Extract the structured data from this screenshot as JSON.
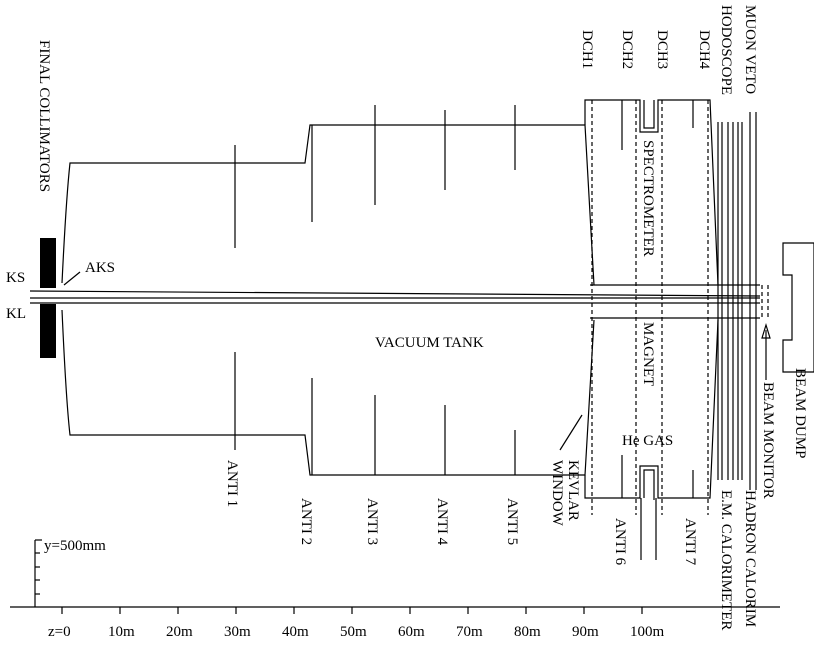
{
  "labels": {
    "final_collimators": "FINAL COLLIMATORS",
    "ks": "KS",
    "kl": "KL",
    "aks": "AKS",
    "vacuum_tank": "VACUUM TANK",
    "anti1": "ANTI 1",
    "anti2": "ANTI 2",
    "anti3": "ANTI 3",
    "anti4": "ANTI 4",
    "anti5": "ANTI 5",
    "anti6": "ANTI 6",
    "anti7": "ANTI 7",
    "kevlar": "KEVLAR",
    "window": "WINDOW",
    "he_gas": "He GAS",
    "dch1": "DCH1",
    "dch2": "DCH2",
    "dch3": "DCH3",
    "dch4": "DCH4",
    "hodoscope": "HODOSCOPE",
    "muon_veto": "MUON VETO",
    "spectrometer": "SPECTROMETER",
    "magnet": "MAGNET",
    "em_calorimeter": "E.M. CALORIMETER",
    "hadron_calorimeter": "HADRON CALORIM",
    "beam_monitor": "BEAM MONITOR",
    "beam_dump": "BEAM DUMP",
    "y_scale": "y=500mm"
  },
  "z_axis": [
    "z=0",
    "10m",
    "20m",
    "30m",
    "40m",
    "50m",
    "60m",
    "70m",
    "80m",
    "90m",
    "100m"
  ]
}
